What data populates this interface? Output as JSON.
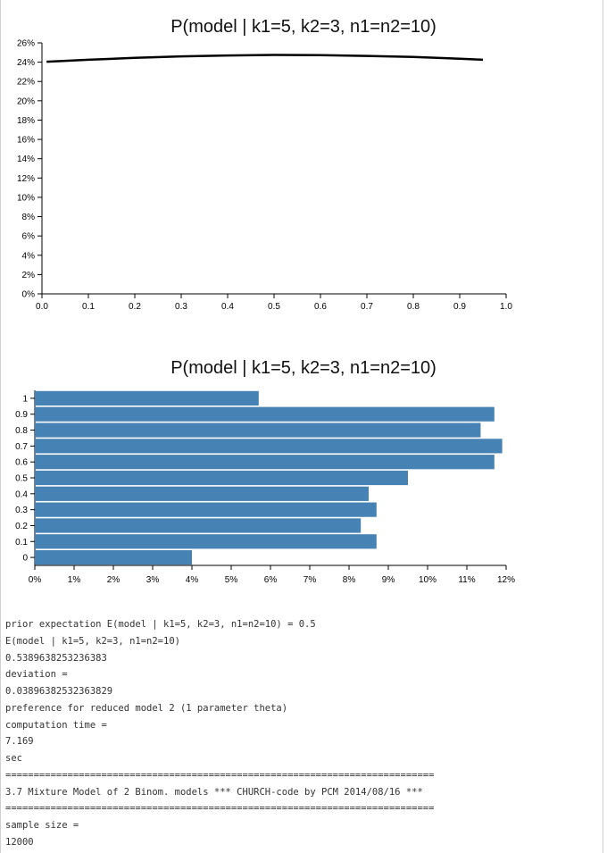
{
  "chart_data": [
    {
      "type": "line",
      "title": "P(model | k1=5, k2=3, n1=n2=10)",
      "xlim": [
        0.0,
        1.0
      ],
      "ylim": [
        0,
        26
      ],
      "x_ticks": [
        "0.0",
        "0.1",
        "0.2",
        "0.3",
        "0.4",
        "0.5",
        "0.6",
        "0.7",
        "0.8",
        "0.9",
        "1.0"
      ],
      "y_ticks": [
        "0%",
        "2%",
        "4%",
        "6%",
        "8%",
        "10%",
        "12%",
        "14%",
        "16%",
        "18%",
        "20%",
        "22%",
        "24%",
        "26%"
      ],
      "series": [
        {
          "x": [
            0.01,
            0.1,
            0.2,
            0.3,
            0.4,
            0.5,
            0.6,
            0.7,
            0.8,
            0.9,
            0.95
          ],
          "y": [
            24.05,
            24.25,
            24.45,
            24.6,
            24.7,
            24.75,
            24.72,
            24.65,
            24.55,
            24.35,
            24.25
          ]
        }
      ]
    },
    {
      "type": "bar",
      "orientation": "horizontal",
      "title": "P(model | k1=5, k2=3, n1=n2=10)",
      "categories": [
        "0",
        "0.1",
        "0.2",
        "0.3",
        "0.4",
        "0.5",
        "0.6",
        "0.7",
        "0.8",
        "0.9",
        "1"
      ],
      "values": [
        4.0,
        8.7,
        8.3,
        8.7,
        8.5,
        9.5,
        11.7,
        11.9,
        11.35,
        11.7,
        5.7
      ],
      "xlim": [
        0,
        12
      ],
      "x_ticks": [
        "0%",
        "1%",
        "2%",
        "3%",
        "4%",
        "5%",
        "6%",
        "7%",
        "8%",
        "9%",
        "10%",
        "11%",
        "12%"
      ],
      "bar_color": "#4682b4"
    }
  ],
  "output_lines": [
    "prior expectation E(model | k1=5, k2=3, n1=n2=10) = 0.5",
    "E(model | k1=5, k2=3, n1=n2=10)",
    "0.5389638253236383",
    "deviation =",
    "0.03896382532363829",
    "preference for reduced model 2 (1 parameter theta)",
    "computation time =",
    "7.169",
    "sec",
    "============================================================================",
    "3.7 Mixture Model of 2 Binom. models *** CHURCH-code by PCM 2014/08/16 ***",
    "============================================================================",
    "sample size =",
    "12000"
  ]
}
